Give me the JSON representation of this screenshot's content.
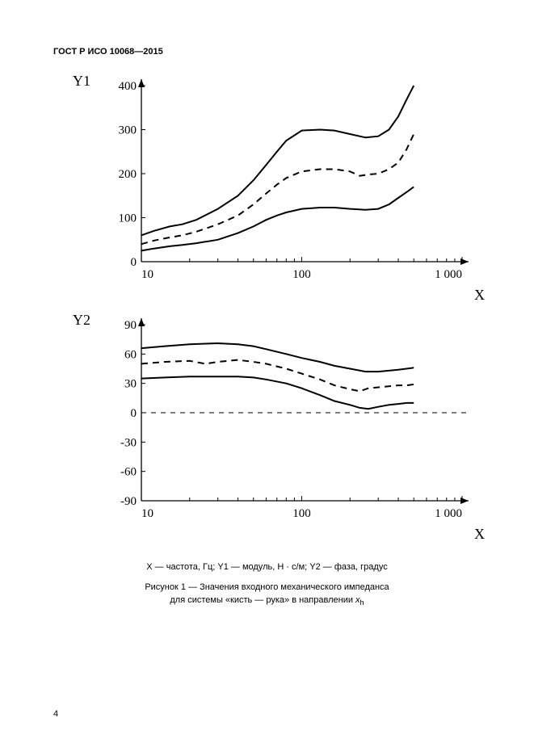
{
  "header": "ГОСТ Р ИСО 10068—2015",
  "page_number": "4",
  "caption_line1": "X — частота, Гц; Y1 — модуль, Н · с/м; Y2 — фаза, градус",
  "caption_line2": "Рисунок 1 — Значения входного механического импеданса",
  "caption_line3_prefix": "для системы «кисть — рука» в направлении ",
  "caption_line3_var": "x",
  "caption_line3_sub": "h",
  "chart1": {
    "type": "line",
    "y_label": "Y1",
    "x_label": "X",
    "x_scale": "log",
    "xlim": [
      10,
      1000
    ],
    "ylim": [
      0,
      400
    ],
    "x_ticks": [
      10,
      100,
      1000
    ],
    "x_tick_labels": [
      "10",
      "100",
      "1 000"
    ],
    "y_ticks": [
      0,
      100,
      200,
      300,
      400
    ],
    "y_tick_labels": [
      "0",
      "100",
      "200",
      "300",
      "400"
    ],
    "line_color": "#000000",
    "background_color": "#ffffff",
    "line_width_solid": 2.0,
    "line_width_dash": 2.0,
    "dash_pattern": "8 6",
    "series": {
      "upper_solid": [
        [
          10,
          60
        ],
        [
          12,
          70
        ],
        [
          15,
          80
        ],
        [
          18,
          85
        ],
        [
          22,
          95
        ],
        [
          30,
          120
        ],
        [
          40,
          150
        ],
        [
          50,
          185
        ],
        [
          60,
          220
        ],
        [
          70,
          250
        ],
        [
          80,
          275
        ],
        [
          100,
          298
        ],
        [
          130,
          300
        ],
        [
          160,
          298
        ],
        [
          200,
          290
        ],
        [
          250,
          282
        ],
        [
          300,
          285
        ],
        [
          350,
          300
        ],
        [
          400,
          330
        ],
        [
          450,
          368
        ],
        [
          500,
          400
        ]
      ],
      "middle_dash": [
        [
          10,
          40
        ],
        [
          12,
          48
        ],
        [
          15,
          55
        ],
        [
          18,
          60
        ],
        [
          22,
          68
        ],
        [
          30,
          85
        ],
        [
          40,
          105
        ],
        [
          50,
          130
        ],
        [
          60,
          155
        ],
        [
          70,
          175
        ],
        [
          80,
          190
        ],
        [
          100,
          205
        ],
        [
          130,
          210
        ],
        [
          160,
          210
        ],
        [
          200,
          205
        ],
        [
          230,
          195
        ],
        [
          260,
          198
        ],
        [
          300,
          200
        ],
        [
          350,
          210
        ],
        [
          400,
          225
        ],
        [
          450,
          255
        ],
        [
          500,
          290
        ]
      ],
      "lower_solid": [
        [
          10,
          25
        ],
        [
          12,
          30
        ],
        [
          15,
          35
        ],
        [
          18,
          38
        ],
        [
          22,
          42
        ],
        [
          30,
          50
        ],
        [
          40,
          65
        ],
        [
          50,
          80
        ],
        [
          60,
          95
        ],
        [
          70,
          105
        ],
        [
          80,
          112
        ],
        [
          100,
          120
        ],
        [
          130,
          123
        ],
        [
          160,
          123
        ],
        [
          200,
          120
        ],
        [
          250,
          118
        ],
        [
          300,
          120
        ],
        [
          350,
          130
        ],
        [
          400,
          145
        ],
        [
          450,
          158
        ],
        [
          500,
          170
        ]
      ]
    }
  },
  "chart2": {
    "type": "line",
    "y_label": "Y2",
    "x_label": "X",
    "x_scale": "log",
    "xlim": [
      10,
      1000
    ],
    "ylim": [
      -90,
      90
    ],
    "x_ticks": [
      10,
      100,
      1000
    ],
    "x_tick_labels": [
      "10",
      "100",
      "1 000"
    ],
    "y_ticks": [
      -90,
      -60,
      -30,
      0,
      30,
      60,
      90
    ],
    "y_tick_labels": [
      "-90",
      "-60",
      "-30",
      "0",
      "30",
      "60",
      "90"
    ],
    "line_color": "#000000",
    "background_color": "#ffffff",
    "line_width_solid": 2.0,
    "line_width_dash": 2.0,
    "dash_pattern": "8 6",
    "zero_line_dash": "6 6",
    "series": {
      "upper_solid": [
        [
          10,
          66
        ],
        [
          14,
          68
        ],
        [
          20,
          70
        ],
        [
          30,
          71
        ],
        [
          40,
          70
        ],
        [
          50,
          68
        ],
        [
          60,
          65
        ],
        [
          80,
          60
        ],
        [
          100,
          56
        ],
        [
          130,
          52
        ],
        [
          160,
          48
        ],
        [
          200,
          45
        ],
        [
          250,
          42
        ],
        [
          300,
          42
        ],
        [
          350,
          43
        ],
        [
          400,
          44
        ],
        [
          450,
          45
        ],
        [
          500,
          46
        ]
      ],
      "middle_dash": [
        [
          10,
          50
        ],
        [
          14,
          52
        ],
        [
          20,
          53
        ],
        [
          25,
          50
        ],
        [
          30,
          52
        ],
        [
          40,
          54
        ],
        [
          50,
          52
        ],
        [
          60,
          50
        ],
        [
          80,
          45
        ],
        [
          100,
          40
        ],
        [
          130,
          34
        ],
        [
          160,
          28
        ],
        [
          200,
          24
        ],
        [
          230,
          22
        ],
        [
          260,
          25
        ],
        [
          300,
          26
        ],
        [
          350,
          27
        ],
        [
          400,
          28
        ],
        [
          450,
          28
        ],
        [
          500,
          29
        ]
      ],
      "lower_solid": [
        [
          10,
          35
        ],
        [
          14,
          36
        ],
        [
          20,
          37
        ],
        [
          30,
          37
        ],
        [
          40,
          37
        ],
        [
          50,
          36
        ],
        [
          60,
          34
        ],
        [
          80,
          30
        ],
        [
          100,
          25
        ],
        [
          130,
          18
        ],
        [
          160,
          12
        ],
        [
          200,
          8
        ],
        [
          230,
          5
        ],
        [
          260,
          4
        ],
        [
          300,
          6
        ],
        [
          350,
          8
        ],
        [
          400,
          9
        ],
        [
          450,
          10
        ],
        [
          500,
          10
        ]
      ]
    }
  }
}
